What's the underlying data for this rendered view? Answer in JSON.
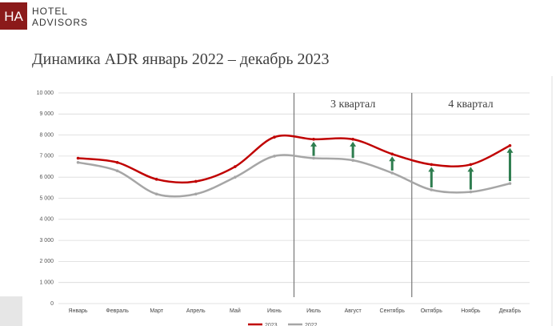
{
  "header": {
    "logo": "HA",
    "company_line1": "HOTEL",
    "company_line2": "ADVISORS"
  },
  "chart_data": {
    "type": "line",
    "title": "Динамика ADR январь 2022 – декабрь 2023",
    "categories": [
      "Январь",
      "Февраль",
      "Март",
      "Апрель",
      "Май",
      "Июнь",
      "Июль",
      "Август",
      "Сентябрь",
      "Октябрь",
      "Ноябрь",
      "Декабрь"
    ],
    "series": [
      {
        "name": "2023",
        "color": "#c00000",
        "values": [
          6900,
          6700,
          5900,
          5800,
          6500,
          7900,
          7800,
          7800,
          7100,
          6600,
          6600,
          7500
        ]
      },
      {
        "name": "2022",
        "color": "#a6a6a6",
        "values": [
          6700,
          6300,
          5200,
          5200,
          6000,
          7000,
          6900,
          6800,
          6200,
          5400,
          5300,
          5700
        ]
      }
    ],
    "ylim": [
      0,
      10000
    ],
    "yticks": [
      0,
      {
        "value": 1000,
        "label": "1 000"
      },
      {
        "value": 2000,
        "label": "2 000"
      },
      {
        "value": 3000,
        "label": "3 000"
      },
      {
        "value": 4000,
        "label": "4 000"
      },
      {
        "value": 5000,
        "label": "5 000"
      },
      {
        "value": 6000,
        "label": "6 000"
      },
      {
        "value": 7000,
        "label": "7 000"
      },
      {
        "value": 8000,
        "label": "8 000"
      },
      {
        "value": 9000,
        "label": "9 000"
      },
      {
        "value": 10000,
        "label": "10 000"
      }
    ],
    "grid": true,
    "annotations": [
      "3 квартал",
      "4 квартал"
    ],
    "arrow_color": "#2e7d4f"
  }
}
